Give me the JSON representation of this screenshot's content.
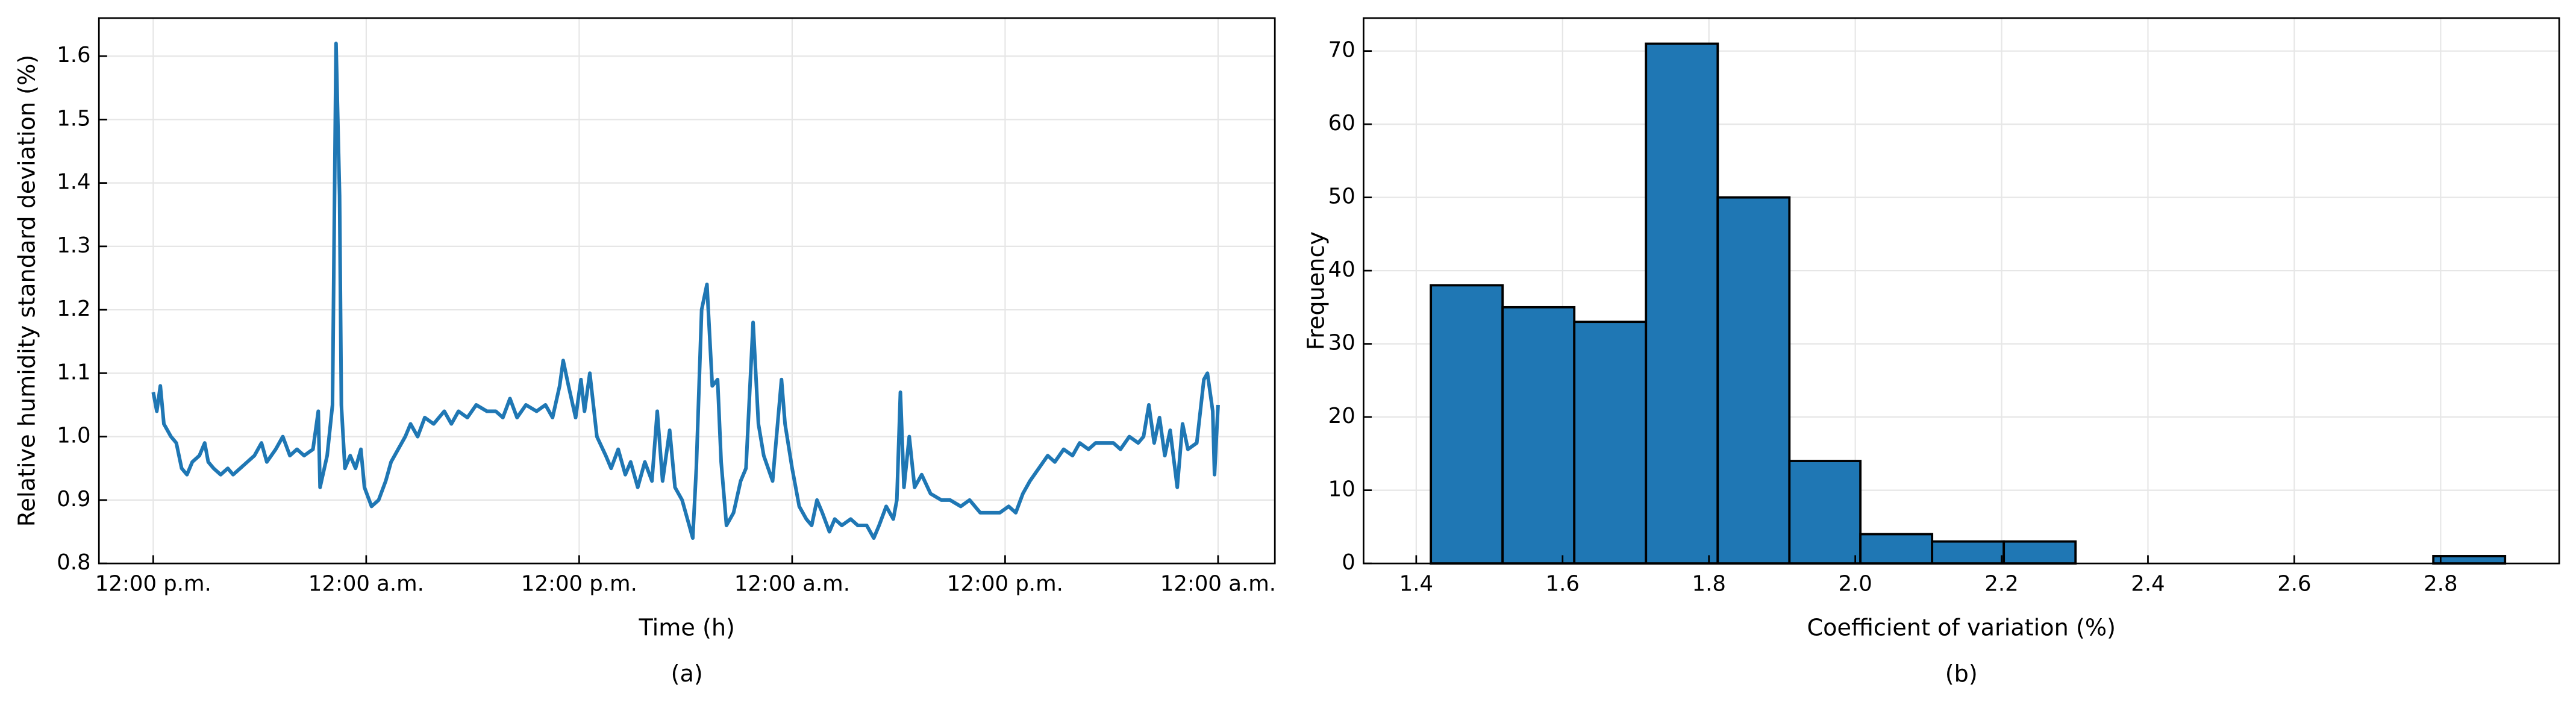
{
  "chart_data": [
    {
      "type": "line",
      "xlabel": "Time (h)",
      "ylabel": "Relative humidity standard deviation (%)",
      "caption": "(a)",
      "color": "#1f77b4",
      "grid": true,
      "xlim": [
        -3.06,
        63.2
      ],
      "ylim": [
        0.8,
        1.66
      ],
      "xticks": [
        {
          "value": 0,
          "label": "12:00 p.m."
        },
        {
          "value": 12,
          "label": "12:00 a.m."
        },
        {
          "value": 24,
          "label": "12:00 p.m."
        },
        {
          "value": 36,
          "label": "12:00 a.m."
        },
        {
          "value": 48,
          "label": "12:00 p.m."
        },
        {
          "value": 60,
          "label": "12:00 a.m."
        }
      ],
      "yticks": [
        0.8,
        0.9,
        {
          "value": 1,
          "label": "1.0"
        },
        1.1,
        1.2,
        1.3,
        1.4,
        1.5,
        1.6
      ],
      "x": [
        0,
        0.2,
        0.4,
        0.6,
        1.0,
        1.3,
        1.6,
        1.9,
        2.2,
        2.6,
        2.9,
        3.1,
        3.4,
        3.8,
        4.2,
        4.5,
        4.9,
        5.3,
        5.7,
        6.1,
        6.4,
        6.9,
        7.3,
        7.7,
        8.1,
        8.5,
        9.0,
        9.3,
        9.4,
        9.8,
        10.1,
        10.3,
        10.5,
        10.6,
        10.8,
        11.1,
        11.4,
        11.7,
        11.9,
        12.3,
        12.7,
        13.1,
        13.4,
        13.8,
        14.2,
        14.5,
        14.9,
        15.3,
        15.8,
        16.4,
        16.8,
        17.2,
        17.7,
        18.2,
        18.8,
        19.3,
        19.7,
        20.1,
        20.5,
        21.0,
        21.6,
        22.1,
        22.5,
        22.9,
        23.1,
        23.4,
        23.8,
        24.1,
        24.3,
        24.6,
        25.0,
        25.5,
        25.8,
        26.2,
        26.6,
        26.9,
        27.3,
        27.7,
        28.1,
        28.4,
        28.7,
        29.1,
        29.4,
        29.8,
        30.4,
        30.6,
        30.9,
        31.2,
        31.5,
        31.8,
        32.0,
        32.3,
        32.7,
        33.1,
        33.4,
        33.8,
        34.1,
        34.4,
        34.9,
        35.4,
        35.6,
        36.0,
        36.4,
        36.8,
        37.1,
        37.4,
        37.7,
        38.1,
        38.4,
        38.8,
        39.3,
        39.7,
        40.2,
        40.6,
        40.9,
        41.3,
        41.7,
        41.9,
        42.1,
        42.3,
        42.6,
        42.9,
        43.3,
        43.8,
        44.4,
        44.9,
        45.5,
        46.0,
        46.6,
        47.1,
        47.7,
        48.2,
        48.6,
        49.0,
        49.4,
        49.9,
        50.4,
        50.8,
        51.3,
        51.8,
        52.2,
        52.7,
        53.1,
        53.6,
        54.1,
        54.5,
        55.0,
        55.5,
        55.8,
        56.1,
        56.4,
        56.7,
        57.0,
        57.3,
        57.7,
        58.0,
        58.3,
        58.8,
        59.2,
        59.4,
        59.7,
        59.8,
        60.0
      ],
      "values": [
        1.07,
        1.04,
        1.08,
        1.02,
        1.0,
        0.99,
        0.95,
        0.94,
        0.96,
        0.97,
        0.99,
        0.96,
        0.95,
        0.94,
        0.95,
        0.94,
        0.95,
        0.96,
        0.97,
        0.99,
        0.96,
        0.98,
        1.0,
        0.97,
        0.98,
        0.97,
        0.98,
        1.04,
        0.92,
        0.97,
        1.05,
        1.62,
        1.38,
        1.05,
        0.95,
        0.97,
        0.95,
        0.98,
        0.92,
        0.89,
        0.9,
        0.93,
        0.96,
        0.98,
        1.0,
        1.02,
        1.0,
        1.03,
        1.02,
        1.04,
        1.02,
        1.04,
        1.03,
        1.05,
        1.04,
        1.04,
        1.03,
        1.06,
        1.03,
        1.05,
        1.04,
        1.05,
        1.03,
        1.08,
        1.12,
        1.08,
        1.03,
        1.09,
        1.04,
        1.1,
        1.0,
        0.97,
        0.95,
        0.98,
        0.94,
        0.96,
        0.92,
        0.96,
        0.93,
        1.04,
        0.93,
        1.01,
        0.92,
        0.9,
        0.84,
        0.95,
        1.2,
        1.24,
        1.08,
        1.09,
        0.96,
        0.86,
        0.88,
        0.93,
        0.95,
        1.18,
        1.02,
        0.97,
        0.93,
        1.09,
        1.02,
        0.95,
        0.89,
        0.87,
        0.86,
        0.9,
        0.88,
        0.85,
        0.87,
        0.86,
        0.87,
        0.86,
        0.86,
        0.84,
        0.86,
        0.89,
        0.87,
        0.9,
        1.07,
        0.92,
        1.0,
        0.92,
        0.94,
        0.91,
        0.9,
        0.9,
        0.89,
        0.9,
        0.88,
        0.88,
        0.88,
        0.89,
        0.88,
        0.91,
        0.93,
        0.95,
        0.97,
        0.96,
        0.98,
        0.97,
        0.99,
        0.98,
        0.99,
        0.99,
        0.99,
        0.98,
        1.0,
        0.99,
        1.0,
        1.05,
        0.99,
        1.03,
        0.97,
        1.01,
        0.92,
        1.02,
        0.98,
        0.99,
        1.09,
        1.1,
        1.04,
        0.94,
        1.05
      ]
    },
    {
      "type": "histogram",
      "xlabel": "Coefficient of variation (%)",
      "ylabel": "Frequency",
      "caption": "(b)",
      "color": "#1f77b4",
      "edgecolor": "#000000",
      "grid": true,
      "xlim": [
        1.328,
        2.962
      ],
      "ylim": [
        0,
        74.5
      ],
      "xticks": [
        1.4,
        1.6,
        1.8,
        {
          "value": 2,
          "label": "2.0"
        },
        2.2,
        2.4,
        2.6,
        2.8
      ],
      "yticks": [
        0,
        10,
        20,
        30,
        40,
        50,
        60,
        70
      ],
      "bins": [
        1.42,
        1.518,
        1.616,
        1.714,
        1.812,
        1.91,
        2.007,
        2.105,
        2.203,
        2.301,
        2.399,
        2.497,
        2.595,
        2.693,
        2.79,
        2.888
      ],
      "values": [
        38,
        35,
        33,
        71,
        50,
        14,
        4,
        3,
        3,
        0,
        0,
        0,
        0,
        0,
        1
      ]
    }
  ]
}
